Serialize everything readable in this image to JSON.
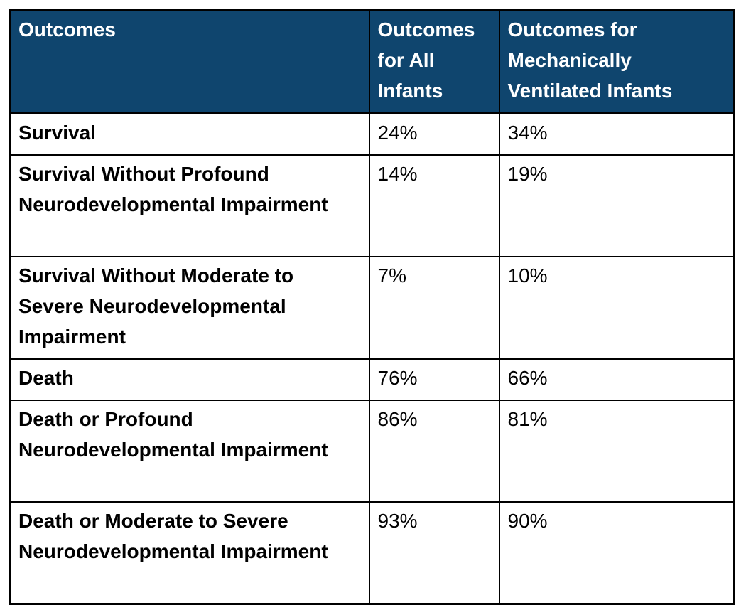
{
  "colors": {
    "header_background": "#0F456E",
    "header_text": "#FFFFFF",
    "border": "#000000",
    "body_text": "#000000",
    "page_background": "#FFFFFF"
  },
  "table": {
    "columns": [
      {
        "id": "outcomes",
        "label": "Outcomes"
      },
      {
        "id": "all_infants",
        "label": "Outcomes for All Infants"
      },
      {
        "id": "ventilated_infants",
        "label": "Outcomes for Mechanically Ventilated Infants"
      }
    ],
    "rows": [
      {
        "outcome": "Survival",
        "all_infants": "24%",
        "ventilated_infants": "34%"
      },
      {
        "outcome": "Survival Without Profound Neurodevelopmental Impairment",
        "all_infants": "14%",
        "ventilated_infants": "19%"
      },
      {
        "outcome": "Survival Without Moderate to Severe Neurodevelopmental Impairment",
        "all_infants": "7%",
        "ventilated_infants": "10%"
      },
      {
        "outcome": "Death",
        "all_infants": "76%",
        "ventilated_infants": "66%"
      },
      {
        "outcome": "Death or Profound Neurodevelopmental Impairment",
        "all_infants": "86%",
        "ventilated_infants": "81%"
      },
      {
        "outcome": "Death or Moderate to Severe Neurodevelopmental Impairment",
        "all_infants": "93%",
        "ventilated_infants": "90%"
      }
    ]
  }
}
